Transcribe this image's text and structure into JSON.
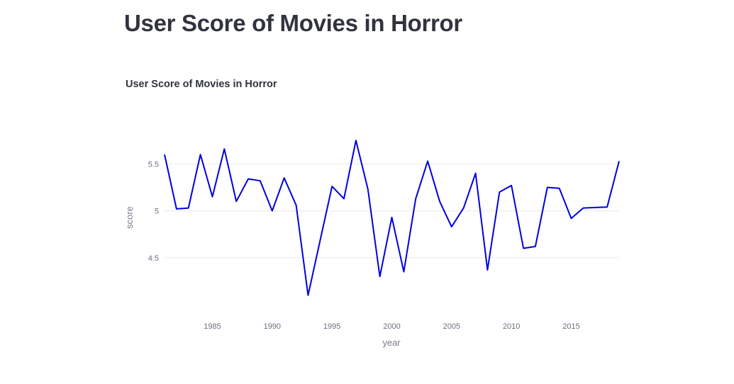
{
  "page": {
    "title": "User Score of Movies in Horror"
  },
  "chart_data": {
    "type": "line",
    "title": "User Score of Movies in Horror",
    "xlabel": "year",
    "ylabel": "score",
    "x_ticks": [
      1985,
      1990,
      1995,
      2000,
      2005,
      2010,
      2015
    ],
    "y_ticks": [
      4.5,
      5,
      5.5
    ],
    "y_tick_labels": [
      "4.5",
      "5",
      "5.5"
    ],
    "xlim": [
      1981,
      2019
    ],
    "ylim": [
      4.0,
      5.85
    ],
    "grid": true,
    "series_color": "#0000dd",
    "series": [
      {
        "x": [
          1981,
          1982,
          1983,
          1984,
          1985,
          1986,
          1987,
          1988,
          1989,
          1990,
          1991,
          1992,
          1993,
          1994,
          1995,
          1996,
          1997,
          1998,
          1999,
          2000,
          2001,
          2002,
          2003,
          2004,
          2005,
          2006,
          2007,
          2008,
          2009,
          2010,
          2011,
          2012,
          2013,
          2014,
          2015,
          2016,
          2017,
          2018,
          2019
        ],
        "y": [
          5.6,
          5.02,
          5.03,
          5.6,
          5.15,
          5.66,
          5.1,
          5.34,
          5.32,
          5.0,
          5.35,
          5.06,
          4.1,
          4.68,
          5.26,
          5.13,
          5.75,
          5.23,
          4.3,
          4.93,
          4.35,
          5.13,
          5.53,
          5.1,
          4.83,
          5.03,
          5.4,
          4.37,
          5.2,
          5.27,
          4.6,
          4.62,
          5.25,
          5.24,
          4.92,
          5.03,
          5.035,
          5.04,
          5.53
        ]
      }
    ]
  }
}
